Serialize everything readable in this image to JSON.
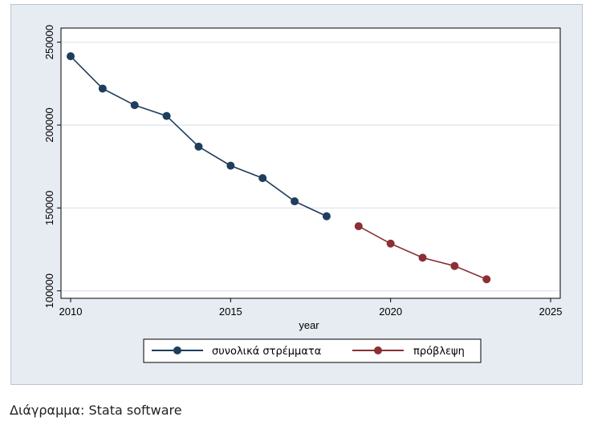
{
  "chart_data": {
    "type": "line",
    "title": "",
    "xlabel": "year",
    "ylabel": "",
    "xlim": [
      2010,
      2025
    ],
    "ylim": [
      100000,
      250000
    ],
    "xticks": [
      "2010",
      "2015",
      "2020",
      "2025"
    ],
    "yticks": [
      "100000",
      "150000",
      "200000",
      "250000"
    ],
    "grid": true,
    "legend_position": "bottom",
    "series": [
      {
        "name": "συνολικά στρέμματα",
        "color": "#1f3d5c",
        "x": [
          2010,
          2011,
          2012,
          2013,
          2014,
          2015,
          2016,
          2017,
          2018
        ],
        "y": [
          241500,
          222000,
          212000,
          205500,
          187000,
          175500,
          168000,
          154000,
          145000
        ]
      },
      {
        "name": "πρόβλεψη",
        "color": "#8b2f35",
        "x": [
          2019,
          2020,
          2021,
          2022,
          2023
        ],
        "y": [
          139000,
          128500,
          120000,
          115000,
          107000
        ]
      }
    ]
  },
  "caption": "Διάγραμμα: Stata software"
}
